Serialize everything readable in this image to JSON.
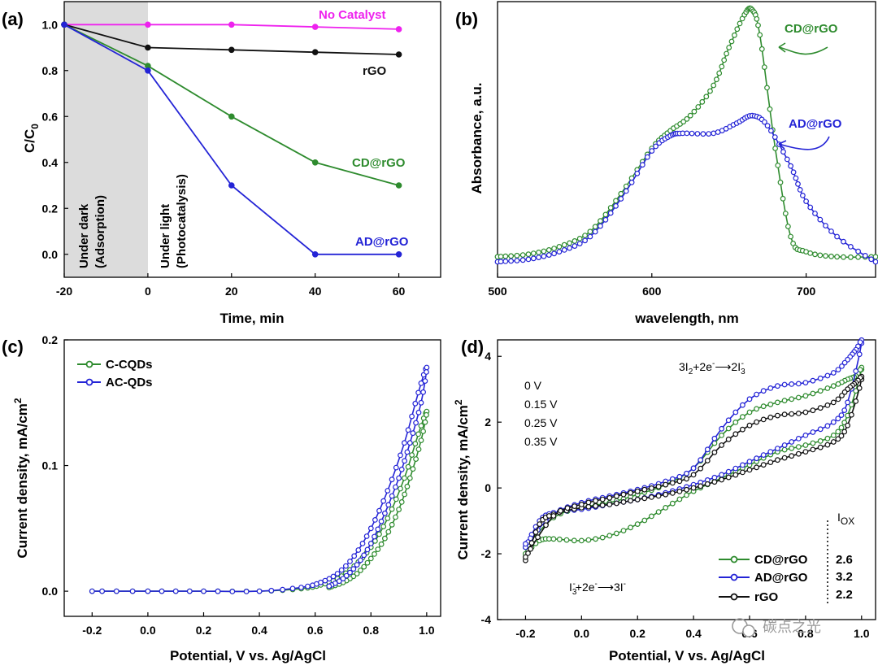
{
  "colors": {
    "green": "#2e8b2e",
    "blue": "#2424d6",
    "black": "#111111",
    "magenta": "#ee22ee",
    "shade": "#dcdcdc"
  },
  "watermark": "碳点之光",
  "chart_data": [
    {
      "panel_label": "(a)",
      "type": "line",
      "xlabel": "Time, min",
      "ylabel": "C/C0",
      "ylabel_main": "C/C",
      "ylabel_sub": "0",
      "xlim": [
        -20,
        70
      ],
      "ylim": [
        -0.1,
        1.1
      ],
      "xticks": [
        "-20",
        "0",
        "20",
        "40",
        "60"
      ],
      "yticks": [
        "0.0",
        "0.2",
        "0.4",
        "0.6",
        "0.8",
        "1.0"
      ],
      "x": [
        -20,
        0,
        20,
        40,
        60
      ],
      "series": [
        {
          "name": "No Catalyst",
          "color": "#ee22ee",
          "values": [
            1.0,
            1.0,
            1.0,
            0.99,
            0.98
          ]
        },
        {
          "name": "rGO",
          "color": "#111111",
          "values": [
            1.0,
            0.9,
            0.89,
            0.88,
            0.87
          ]
        },
        {
          "name": "CD@rGO",
          "color": "#2e8b2e",
          "values": [
            1.0,
            0.82,
            0.6,
            0.4,
            0.3
          ]
        },
        {
          "name": "AD@rGO",
          "color": "#2424d6",
          "values": [
            1.0,
            0.8,
            0.3,
            0.0,
            0.0
          ]
        }
      ],
      "shaded_region": {
        "x": [
          -20,
          0
        ]
      },
      "annotations": [
        "Under dark",
        "(Adsorption)",
        "Under light",
        "(Photocatalysis)"
      ]
    },
    {
      "panel_label": "(b)",
      "type": "line",
      "xlabel": "wavelength, nm",
      "ylabel": "Absorbance, a.u.",
      "xlim": [
        500,
        745
      ],
      "xticks": [
        "500",
        "600",
        "700"
      ],
      "series": [
        {
          "name": "CD@rGO",
          "color": "#2e8b2e",
          "x": [
            500,
            520,
            540,
            560,
            580,
            600,
            612,
            625,
            640,
            650,
            660,
            665,
            670,
            680,
            690,
            700,
            720,
            745
          ],
          "values": [
            0.02,
            0.03,
            0.06,
            0.12,
            0.27,
            0.45,
            0.52,
            0.58,
            0.7,
            0.85,
            0.98,
            1.0,
            0.9,
            0.45,
            0.1,
            0.04,
            0.02,
            0.02
          ]
        },
        {
          "name": "AD@rGO",
          "color": "#2424d6",
          "x": [
            500,
            520,
            540,
            560,
            580,
            600,
            612,
            620,
            640,
            655,
            665,
            675,
            690,
            700,
            720,
            745
          ],
          "values": [
            0.0,
            0.01,
            0.04,
            0.1,
            0.25,
            0.44,
            0.5,
            0.51,
            0.51,
            0.55,
            0.58,
            0.54,
            0.38,
            0.24,
            0.1,
            0.0
          ]
        }
      ]
    },
    {
      "panel_label": "(c)",
      "type": "line",
      "xlabel": "Potential, V vs. Ag/AgCl",
      "ylabel": "Current density, mA/cm2",
      "ylabel_main": "Current density, mA/cm",
      "ylabel_sup": "2",
      "xlim": [
        -0.3,
        1.05
      ],
      "ylim": [
        -0.02,
        0.2
      ],
      "xticks": [
        "-0.2",
        "0.0",
        "0.2",
        "0.4",
        "0.6",
        "0.8",
        "1.0"
      ],
      "yticks": [
        "0.0",
        "0.1",
        "0.2"
      ],
      "series": [
        {
          "name": "C-CQDs",
          "color": "#2e8b2e",
          "x": [
            -0.2,
            0.0,
            0.2,
            0.4,
            0.55,
            0.62,
            0.68,
            0.74,
            0.8,
            0.86,
            0.92,
            0.97,
            1.0,
            0.98,
            0.94,
            0.9,
            0.85,
            0.8,
            0.75,
            0.7,
            0.65
          ],
          "values": [
            0.0,
            0.0,
            0.0,
            0.0,
            0.002,
            0.005,
            0.01,
            0.02,
            0.035,
            0.058,
            0.09,
            0.125,
            0.143,
            0.12,
            0.09,
            0.065,
            0.042,
            0.026,
            0.014,
            0.007,
            0.003
          ]
        },
        {
          "name": "AC-QDs",
          "color": "#2424d6",
          "x": [
            -0.2,
            0.0,
            0.2,
            0.4,
            0.55,
            0.62,
            0.68,
            0.74,
            0.8,
            0.86,
            0.92,
            0.97,
            1.0,
            0.98,
            0.94,
            0.9,
            0.85,
            0.8,
            0.75,
            0.7,
            0.65
          ],
          "values": [
            0.0,
            0.0,
            0.0,
            0.0,
            0.003,
            0.007,
            0.014,
            0.028,
            0.05,
            0.08,
            0.118,
            0.158,
            0.178,
            0.15,
            0.118,
            0.09,
            0.062,
            0.038,
            0.021,
            0.01,
            0.004
          ]
        }
      ]
    },
    {
      "panel_label": "(d)",
      "type": "line",
      "xlabel": "Potential, V vs. Ag/AgCl",
      "ylabel": "Current density, mA/cm2",
      "ylabel_main": "Current density, mA/cm",
      "ylabel_sup": "2",
      "xlim": [
        -0.3,
        1.05
      ],
      "ylim": [
        -4,
        4.5
      ],
      "xticks": [
        "-0.2",
        "0.0",
        "0.2",
        "0.4",
        "0.6",
        "0.8",
        "1.0"
      ],
      "yticks": [
        "-4",
        "-2",
        "0",
        "2",
        "4"
      ],
      "series": [
        {
          "name": "CD@rGO",
          "color": "#2e8b2e",
          "x": [
            -0.2,
            -0.15,
            -0.1,
            0.0,
            0.1,
            0.2,
            0.3,
            0.4,
            0.5,
            0.6,
            0.7,
            0.8,
            0.9,
            0.95,
            1.0,
            0.98,
            0.95,
            0.9,
            0.8,
            0.7,
            0.6,
            0.5,
            0.4,
            0.3,
            0.2,
            0.1,
            0.0,
            -0.1,
            -0.2
          ],
          "values": [
            -2.0,
            -1.6,
            -1.55,
            -1.6,
            -1.45,
            -1.1,
            -0.6,
            -0.1,
            0.3,
            0.7,
            1.1,
            1.3,
            1.6,
            2.2,
            3.6,
            3.4,
            3.3,
            3.1,
            2.8,
            2.6,
            2.3,
            1.6,
            0.6,
            0.1,
            -0.2,
            -0.45,
            -0.6,
            -0.9,
            -1.8
          ]
        },
        {
          "name": "AD@rGO",
          "color": "#2424d6",
          "x": [
            -0.2,
            -0.15,
            -0.1,
            0.0,
            0.1,
            0.2,
            0.3,
            0.4,
            0.5,
            0.6,
            0.7,
            0.8,
            0.9,
            0.95,
            1.0,
            0.98,
            0.95,
            0.9,
            0.8,
            0.7,
            0.6,
            0.5,
            0.4,
            0.3,
            0.2,
            0.1,
            0.0,
            -0.1,
            -0.2
          ],
          "values": [
            -1.8,
            -1.0,
            -0.75,
            -0.65,
            -0.5,
            -0.35,
            -0.15,
            0.1,
            0.4,
            0.8,
            1.2,
            1.6,
            2.0,
            2.6,
            4.4,
            4.2,
            3.9,
            3.5,
            3.2,
            3.1,
            2.7,
            1.8,
            0.6,
            0.2,
            -0.05,
            -0.25,
            -0.45,
            -0.8,
            -1.7
          ]
        },
        {
          "name": "rGO",
          "color": "#111111",
          "x": [
            -0.2,
            -0.15,
            -0.1,
            0.0,
            0.1,
            0.2,
            0.3,
            0.4,
            0.5,
            0.6,
            0.7,
            0.8,
            0.9,
            0.95,
            1.0,
            0.98,
            0.95,
            0.9,
            0.8,
            0.7,
            0.6,
            0.5,
            0.4,
            0.3,
            0.2,
            0.1,
            0.0,
            -0.1,
            -0.2
          ],
          "values": [
            -2.2,
            -1.1,
            -0.8,
            -0.6,
            -0.5,
            -0.35,
            -0.2,
            0.0,
            0.25,
            0.55,
            0.85,
            1.1,
            1.4,
            1.9,
            3.3,
            3.2,
            3.0,
            2.6,
            2.3,
            2.2,
            1.9,
            1.3,
            0.4,
            0.1,
            -0.1,
            -0.3,
            -0.5,
            -0.85,
            -2.1
          ]
        }
      ],
      "potential_list": [
        "0 V",
        "0.15 V",
        "0.25 V",
        "0.35 V"
      ],
      "iox_header": "I",
      "iox_sub": "OX",
      "iox_values": [
        "2.6",
        "3.2",
        "2.2"
      ],
      "reaction_top": {
        "a": "3I",
        "a_sub": "2",
        "b": "+2e",
        "b_sup": "-",
        "arrow": "⟶",
        "c": "2I",
        "c_sub": "3",
        "c_sup": "-"
      },
      "reaction_bottom": {
        "a": "I",
        "a_sub": "3",
        "a_sup": "-",
        "b": "+2e",
        "b_sup": "-",
        "arrow": "⟶",
        "c": "3I",
        "c_sup": "-"
      }
    }
  ]
}
